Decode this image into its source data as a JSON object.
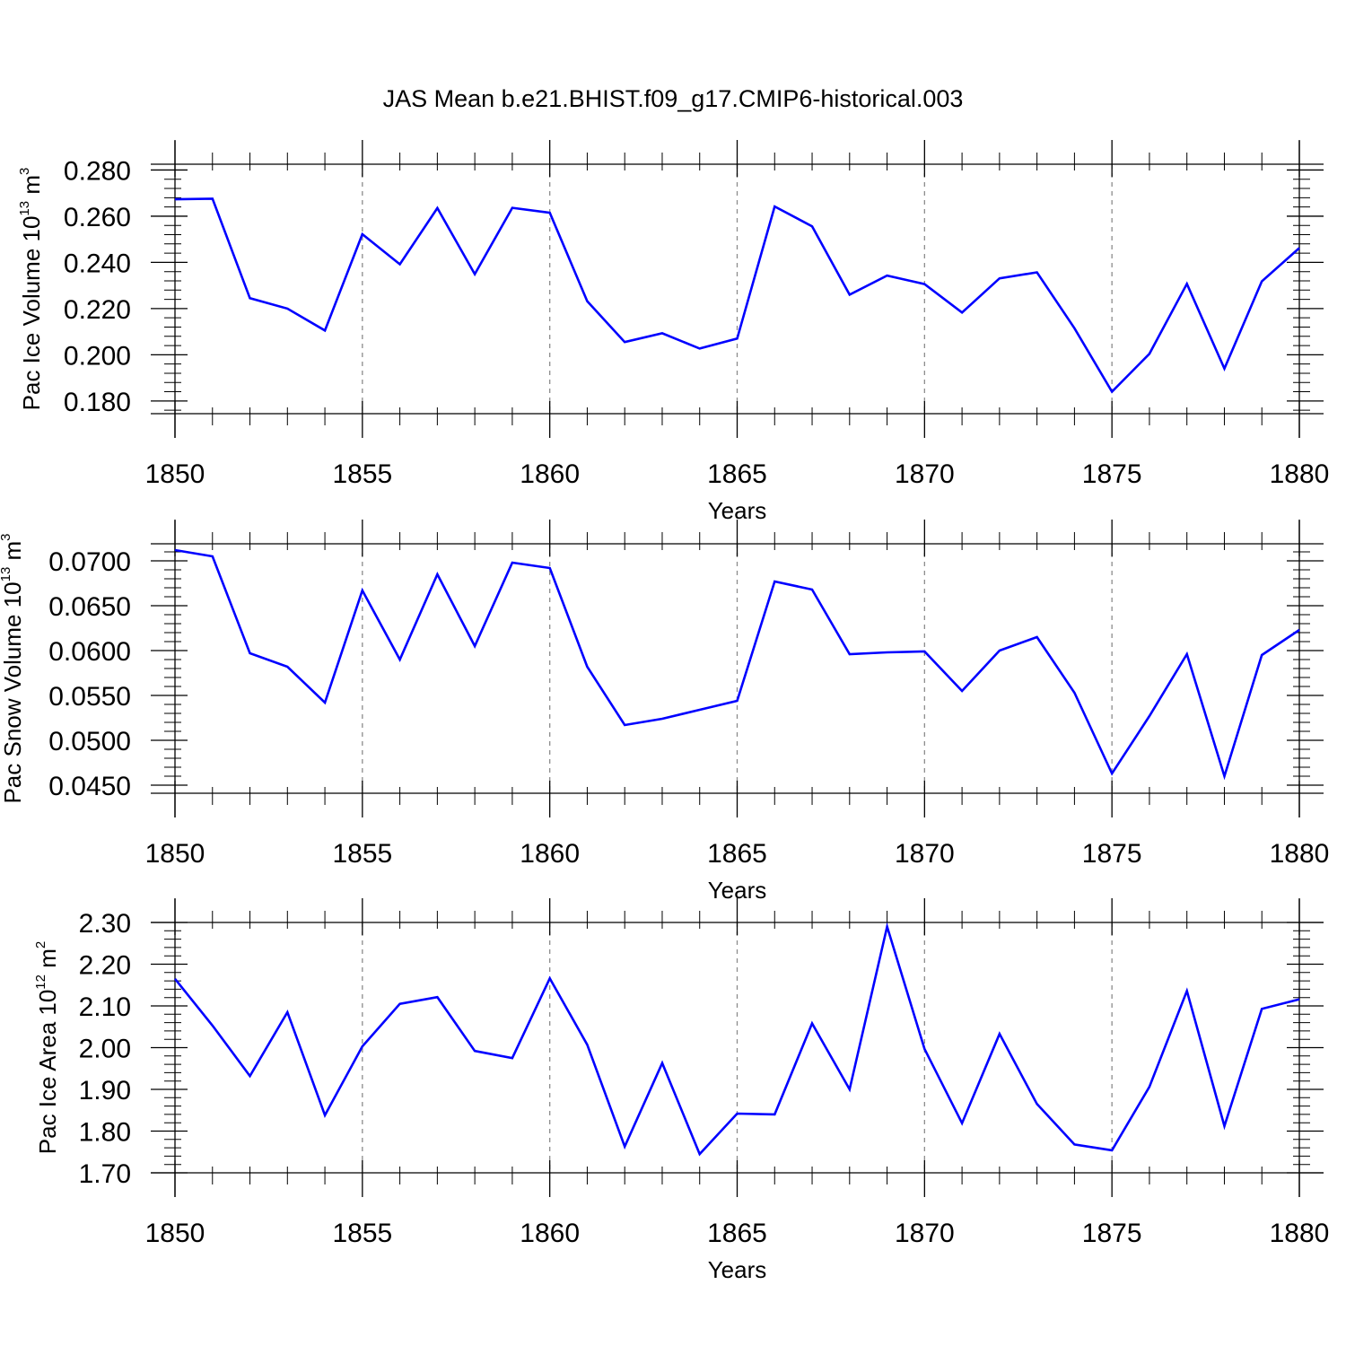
{
  "title": "JAS Mean b.e21.BHIST.f09_g17.CMIP6-historical.003",
  "line_color": "#0000ff",
  "chart_data": [
    {
      "type": "line",
      "ylabel": {
        "main": "Pac Ice Volume 10",
        "exp": "13",
        "unit_main": " m",
        "unit_exp": "3"
      },
      "xlabel": "Years",
      "xlim": [
        1850,
        1880
      ],
      "ylim": [
        0.1745,
        0.2825
      ],
      "yticks": [
        0.18,
        0.2,
        0.22,
        0.24,
        0.26,
        0.28
      ],
      "ytick_labels": [
        "0.180",
        "0.200",
        "0.220",
        "0.240",
        "0.260",
        "0.280"
      ],
      "yminor_step": 0.004,
      "xticks": [
        1850,
        1855,
        1860,
        1865,
        1870,
        1875,
        1880
      ],
      "grid": "x-major-dashed",
      "x": [
        1850,
        1851,
        1852,
        1853,
        1854,
        1855,
        1856,
        1857,
        1858,
        1859,
        1860,
        1861,
        1862,
        1863,
        1864,
        1865,
        1866,
        1867,
        1868,
        1869,
        1870,
        1871,
        1872,
        1873,
        1874,
        1875,
        1876,
        1877,
        1878,
        1879,
        1880
      ],
      "values": [
        0.2673,
        0.2676,
        0.2245,
        0.22,
        0.2105,
        0.2522,
        0.2392,
        0.2635,
        0.2349,
        0.2636,
        0.2615,
        0.2232,
        0.2055,
        0.2093,
        0.2027,
        0.207,
        0.2642,
        0.2556,
        0.226,
        0.2343,
        0.2306,
        0.2183,
        0.2331,
        0.2357,
        0.2115,
        0.184,
        0.2004,
        0.2307,
        0.194,
        0.2318,
        0.2462
      ]
    },
    {
      "type": "line",
      "ylabel": {
        "main": "Pac Snow Volume 10",
        "exp": "13",
        "unit_main": " m",
        "unit_exp": "3"
      },
      "xlabel": "Years",
      "xlim": [
        1850,
        1880
      ],
      "ylim": [
        0.0441,
        0.0719
      ],
      "yticks": [
        0.045,
        0.05,
        0.055,
        0.06,
        0.065,
        0.07
      ],
      "ytick_labels": [
        "0.0450",
        "0.0500",
        "0.0550",
        "0.0600",
        "0.0650",
        "0.0700"
      ],
      "yminor_step": 0.001,
      "xticks": [
        1850,
        1855,
        1860,
        1865,
        1870,
        1875,
        1880
      ],
      "grid": "x-major-dashed",
      "x": [
        1850,
        1851,
        1852,
        1853,
        1854,
        1855,
        1856,
        1857,
        1858,
        1859,
        1860,
        1861,
        1862,
        1863,
        1864,
        1865,
        1866,
        1867,
        1868,
        1869,
        1870,
        1871,
        1872,
        1873,
        1874,
        1875,
        1876,
        1877,
        1878,
        1879,
        1880
      ],
      "values": [
        0.0712,
        0.0705,
        0.0597,
        0.0582,
        0.0542,
        0.0667,
        0.059,
        0.0685,
        0.0605,
        0.0698,
        0.0692,
        0.0582,
        0.0517,
        0.0524,
        0.0534,
        0.0544,
        0.0677,
        0.0668,
        0.0596,
        0.0598,
        0.0599,
        0.0555,
        0.06,
        0.0615,
        0.0553,
        0.0463,
        0.0527,
        0.0596,
        0.046,
        0.0595,
        0.0623
      ]
    },
    {
      "type": "line",
      "ylabel": {
        "main": "Pac Ice Area 10",
        "exp": "12",
        "unit_main": " m",
        "unit_exp": "2"
      },
      "xlabel": "Years",
      "xlim": [
        1850,
        1880
      ],
      "ylim": [
        1.7,
        2.3
      ],
      "yticks": [
        1.7,
        1.8,
        1.9,
        2.0,
        2.1,
        2.2,
        2.3
      ],
      "ytick_labels": [
        "1.70",
        "1.80",
        "1.90",
        "2.00",
        "2.10",
        "2.20",
        "2.30"
      ],
      "yminor_step": 0.02,
      "xticks": [
        1850,
        1855,
        1860,
        1865,
        1870,
        1875,
        1880
      ],
      "grid": "x-major-dashed",
      "x": [
        1850,
        1851,
        1852,
        1853,
        1854,
        1855,
        1856,
        1857,
        1858,
        1859,
        1860,
        1861,
        1862,
        1863,
        1864,
        1865,
        1866,
        1867,
        1868,
        1869,
        1870,
        1871,
        1872,
        1873,
        1874,
        1875,
        1876,
        1877,
        1878,
        1879,
        1880
      ],
      "values": [
        2.165,
        2.053,
        1.932,
        2.085,
        1.838,
        2.003,
        2.105,
        2.121,
        1.992,
        1.975,
        2.166,
        2.007,
        1.763,
        1.963,
        1.745,
        1.842,
        1.84,
        2.058,
        1.9,
        2.29,
        1.997,
        1.819,
        2.033,
        1.865,
        1.768,
        1.754,
        1.906,
        2.136,
        1.812,
        2.093,
        2.116
      ]
    }
  ]
}
